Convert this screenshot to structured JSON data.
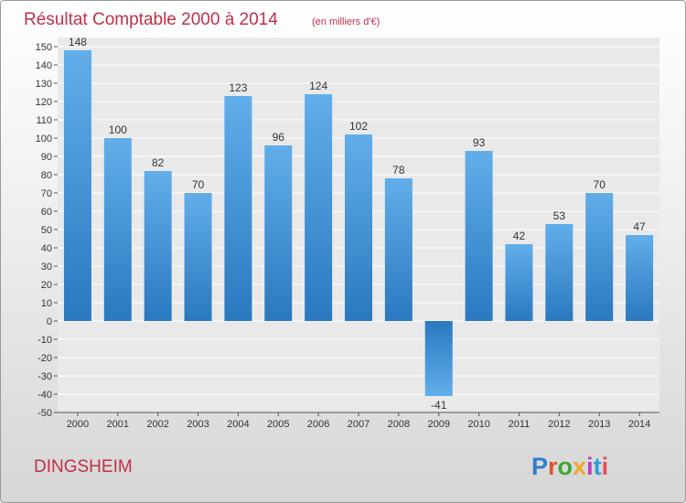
{
  "header": {
    "title": "Résultat Comptable 2000 à 2014",
    "subtitle": "(en milliers d'€)"
  },
  "footer": {
    "commune": "DINGSHEIM",
    "brand": "Proxiti",
    "brand_colors": [
      "#2e7fd0",
      "#e0542c",
      "#43a436",
      "#f0a82a",
      "#c03ab4",
      "#2ea0d8",
      "#e84b5a"
    ]
  },
  "colors": {
    "bar_light": "#62aeea",
    "bar_dark": "#2a78bf",
    "grid": "#ffffff",
    "title": "#c0304a"
  },
  "chart_data": {
    "type": "bar",
    "title": "Résultat Comptable 2000 à 2014",
    "subtitle": "(en milliers d'€)",
    "xlabel": "",
    "ylabel": "",
    "categories": [
      "2000",
      "2001",
      "2002",
      "2003",
      "2004",
      "2005",
      "2006",
      "2007",
      "2008",
      "2009",
      "2010",
      "2011",
      "2012",
      "2013",
      "2014"
    ],
    "values": [
      148,
      100,
      82,
      70,
      123,
      96,
      124,
      102,
      78,
      -41,
      93,
      42,
      53,
      70,
      47
    ],
    "ylim": [
      -50,
      150
    ],
    "yticks": [
      -50,
      -40,
      -30,
      -20,
      -10,
      0,
      10,
      20,
      30,
      40,
      50,
      60,
      70,
      80,
      90,
      100,
      110,
      120,
      130,
      140,
      150
    ],
    "grid": true,
    "legend": "none"
  }
}
